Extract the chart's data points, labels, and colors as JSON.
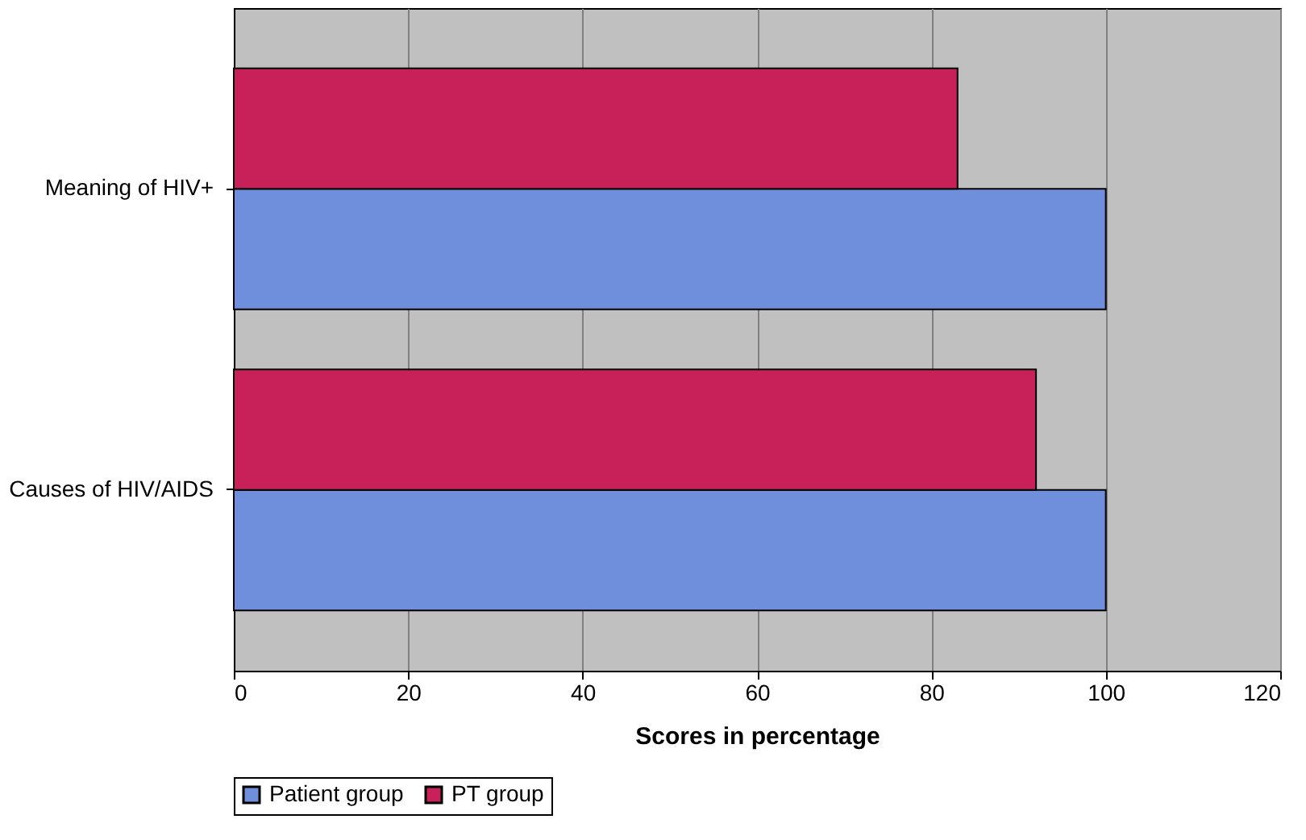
{
  "chart_data": {
    "type": "bar",
    "orientation": "horizontal",
    "xlabel": "Scores in percentage",
    "categories": [
      "Meaning of HIV+",
      "Causes of HIV/AIDS"
    ],
    "series": [
      {
        "name": "Patient group",
        "color": "#6f8fdc",
        "values": [
          100,
          100
        ]
      },
      {
        "name": "PT group",
        "color": "#c8215a",
        "values": [
          83,
          92
        ]
      }
    ],
    "xlim": [
      0,
      120
    ],
    "xticks": [
      0,
      20,
      40,
      60,
      80,
      100,
      120
    ],
    "grid": "x",
    "legend": "bottom"
  }
}
